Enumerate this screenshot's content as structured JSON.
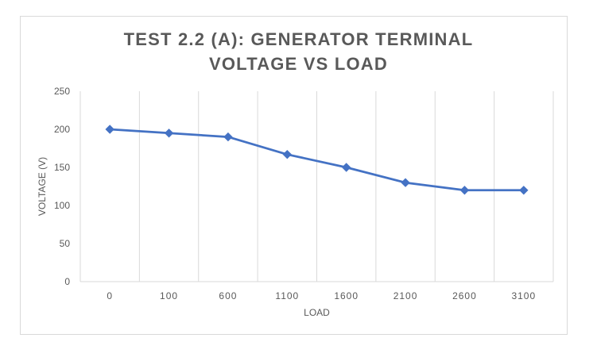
{
  "chart_data": {
    "type": "line",
    "title_line1": "TEST 2.2 (A): GENERATOR TERMINAL",
    "title_line2": "VOLTAGE VS LOAD",
    "xlabel": "LOAD",
    "ylabel": "VOLTAGE (V)",
    "categories": [
      "0",
      "100",
      "600",
      "1100",
      "1600",
      "2100",
      "2600",
      "3100"
    ],
    "series": [
      {
        "values": [
          200,
          195,
          190,
          167,
          150,
          130,
          120,
          120
        ]
      }
    ],
    "ylim": [
      0,
      250
    ],
    "yticks": [
      0,
      50,
      100,
      150,
      200,
      250
    ],
    "grid": "vertical",
    "legend": "none",
    "colors": {
      "line": "#4472c4",
      "grid": "#d9d9d9",
      "text": "#595959"
    }
  }
}
